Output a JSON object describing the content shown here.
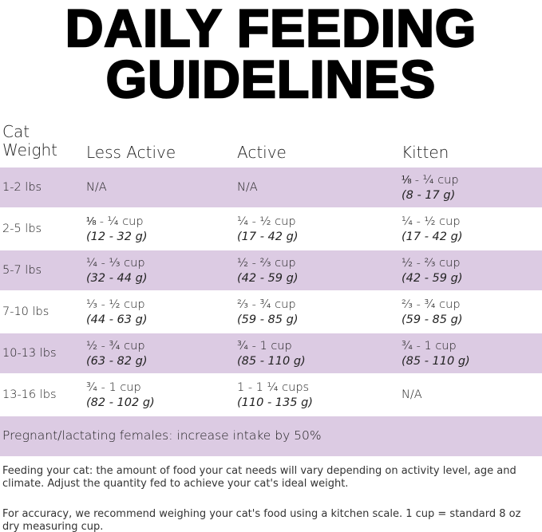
{
  "title": {
    "line1": "DAILY FEEDING",
    "line2": "GUIDELINES"
  },
  "colors": {
    "row_highlight": "#dccbe3"
  },
  "table": {
    "headers": {
      "weight_line1": "Cat",
      "weight_line2": "Weight",
      "less_active": "Less Active",
      "active": "Active",
      "kitten": "Kitten"
    },
    "rows": [
      {
        "weight": "1-2 lbs",
        "less_active": {
          "cup": "N/A",
          "grams": ""
        },
        "active": {
          "cup": "N/A",
          "grams": ""
        },
        "kitten": {
          "cup": "⅛ - ¼ cup",
          "grams": "(8 - 17 g)"
        }
      },
      {
        "weight": "2-5 lbs",
        "less_active": {
          "cup": "⅛ - ¼ cup",
          "grams": "(12 - 32 g)"
        },
        "active": {
          "cup": "¼ - ½ cup",
          "grams": "(17 - 42 g)"
        },
        "kitten": {
          "cup": "¼ - ½ cup",
          "grams": "(17 - 42 g)"
        }
      },
      {
        "weight": "5-7 lbs",
        "less_active": {
          "cup": "¼ - ⅓ cup",
          "grams": "(32 - 44 g)"
        },
        "active": {
          "cup": "½ - ⅔ cup",
          "grams": "(42 - 59 g)"
        },
        "kitten": {
          "cup": "½ - ⅔ cup",
          "grams": "(42 - 59 g)"
        }
      },
      {
        "weight": "7-10 lbs",
        "less_active": {
          "cup": "⅓ - ½ cup",
          "grams": "(44 - 63 g)"
        },
        "active": {
          "cup": "⅔ - ¾ cup",
          "grams": "(59 - 85 g)"
        },
        "kitten": {
          "cup": "⅔ - ¾ cup",
          "grams": "(59 - 85 g)"
        }
      },
      {
        "weight": "10-13 lbs",
        "less_active": {
          "cup": "½ - ¾ cup",
          "grams": "(63 - 82 g)"
        },
        "active": {
          "cup": "¾ - 1 cup",
          "grams": "(85 - 110 g)"
        },
        "kitten": {
          "cup": "¾ - 1 cup",
          "grams": "(85 - 110 g)"
        }
      },
      {
        "weight": "13-16 lbs",
        "less_active": {
          "cup": "¾ - 1 cup",
          "grams": "(82 - 102 g)"
        },
        "active": {
          "cup": "1 - 1 ¼ cups",
          "grams": "(110 - 135 g)"
        },
        "kitten": {
          "cup": "N/A",
          "grams": ""
        }
      }
    ],
    "pregnant_note": "Pregnant/lactating females: increase intake by 50%"
  },
  "notes": [
    "Feeding your cat: the amount of food your cat needs will vary depending on activity level, age and climate. Adjust the quantity fed to achieve your cat's ideal weight.",
    "For accuracy, we recommend weighing your cat's food using a kitchen scale. 1 cup = standard 8 oz dry measuring cup."
  ]
}
